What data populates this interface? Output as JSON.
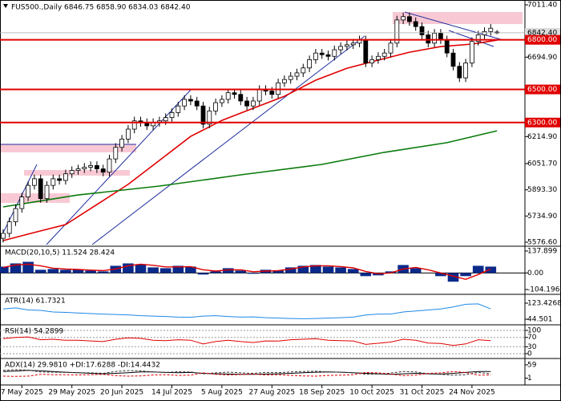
{
  "chart_data": [
    {
      "type": "candlestick",
      "title": "FUS500.,Daily 6846.75 6858.90 6834.03 6842.40",
      "categories": [
        null,
        null,
        null,
        "7 May 2025",
        null,
        null,
        null,
        null,
        null,
        null,
        null,
        "29 May 2025",
        null,
        null,
        null,
        null,
        null,
        null,
        null,
        "20 Jun 2025",
        null,
        null,
        null,
        null,
        null,
        null,
        null,
        "14 Jul 2025",
        null,
        null,
        null,
        null,
        null,
        null,
        null,
        "5 Aug 2025",
        null,
        null,
        null,
        null,
        null,
        null,
        null,
        "27 Aug 2025",
        null,
        null,
        null,
        null,
        null,
        null,
        null,
        "18 Sep 2025",
        null,
        null,
        null,
        null,
        null,
        null,
        null,
        "10 Oct 2025",
        null,
        null,
        null,
        null,
        null,
        null,
        null,
        "31 Oct 2025",
        null,
        null,
        null,
        null,
        null,
        null,
        null,
        "24 Nov 2025",
        null,
        null,
        null,
        null
      ],
      "open": [
        5600,
        5630,
        5700,
        5780,
        5850,
        5920,
        5960,
        5840,
        5920,
        5960,
        5950,
        5990,
        6010,
        6020,
        6030,
        6040,
        6020,
        6000,
        6080,
        6150,
        6200,
        6260,
        6310,
        6300,
        6280,
        6300,
        6310,
        6330,
        6360,
        6400,
        6440,
        6430,
        6400,
        6290,
        6370,
        6420,
        6440,
        6480,
        6470,
        6430,
        6400,
        6430,
        6500,
        6490,
        6470,
        6540,
        6560,
        6580,
        6600,
        6630,
        6680,
        6720,
        6710,
        6700,
        6740,
        6760,
        6770,
        6780,
        6800,
        6660,
        6680,
        6700,
        6720,
        6780,
        6920,
        6940,
        6910,
        6880,
        6830,
        6780,
        6840,
        6800,
        6720,
        6640,
        6570,
        6660,
        6790,
        6830,
        6850,
        6846.75
      ],
      "high": [
        5655,
        5725,
        5805,
        5875,
        5945,
        5985,
        5985,
        5945,
        5985,
        5985,
        6015,
        6035,
        6045,
        6055,
        6065,
        6065,
        6045,
        6105,
        6175,
        6225,
        6285,
        6335,
        6335,
        6325,
        6325,
        6335,
        6355,
        6385,
        6425,
        6465,
        6465,
        6455,
        6425,
        6395,
        6445,
        6465,
        6505,
        6505,
        6495,
        6455,
        6455,
        6525,
        6525,
        6515,
        6565,
        6585,
        6605,
        6625,
        6655,
        6705,
        6745,
        6745,
        6735,
        6765,
        6785,
        6795,
        6805,
        6825,
        6825,
        6705,
        6725,
        6745,
        6805,
        6945,
        6965,
        6965,
        6935,
        6905,
        6855,
        6865,
        6865,
        6825,
        6745,
        6665,
        6685,
        6815,
        6855,
        6875,
        6895,
        6858.9
      ],
      "low": [
        5575,
        5605,
        5675,
        5755,
        5825,
        5895,
        5815,
        5815,
        5895,
        5925,
        5925,
        5965,
        5985,
        5995,
        6005,
        5995,
        5975,
        5975,
        6055,
        6125,
        6175,
        6235,
        6275,
        6255,
        6255,
        6275,
        6285,
        6305,
        6335,
        6375,
        6405,
        6375,
        6265,
        6265,
        6345,
        6395,
        6415,
        6445,
        6405,
        6375,
        6375,
        6405,
        6465,
        6445,
        6445,
        6515,
        6535,
        6555,
        6575,
        6605,
        6655,
        6685,
        6675,
        6675,
        6715,
        6735,
        6745,
        6755,
        6635,
        6635,
        6655,
        6675,
        6695,
        6755,
        6895,
        6885,
        6855,
        6805,
        6755,
        6755,
        6775,
        6695,
        6615,
        6545,
        6545,
        6635,
        6765,
        6805,
        6825,
        6834.03
      ],
      "close": [
        5630,
        5700,
        5780,
        5850,
        5920,
        5960,
        5840,
        5920,
        5960,
        5950,
        5990,
        6010,
        6020,
        6030,
        6040,
        6020,
        6000,
        6080,
        6150,
        6200,
        6260,
        6310,
        6300,
        6280,
        6300,
        6310,
        6330,
        6360,
        6400,
        6440,
        6430,
        6400,
        6290,
        6370,
        6420,
        6440,
        6480,
        6470,
        6430,
        6400,
        6430,
        6500,
        6490,
        6470,
        6540,
        6560,
        6580,
        6600,
        6630,
        6680,
        6720,
        6710,
        6700,
        6740,
        6760,
        6770,
        6780,
        6800,
        6660,
        6680,
        6700,
        6720,
        6780,
        6920,
        6940,
        6910,
        6880,
        6830,
        6780,
        6840,
        6800,
        6720,
        6640,
        6570,
        6660,
        6790,
        6830,
        6850,
        6870,
        6842.4
      ],
      "up_color": "#ffffff",
      "down_color": "#000000",
      "series": [
        {
          "color": "#e00000",
          "x": [
            0,
            5,
            10,
            15,
            20,
            25,
            30,
            35,
            40,
            45,
            50,
            55,
            60,
            65,
            70,
            75,
            79
          ],
          "values": [
            5586,
            5635,
            5683,
            5804,
            5926,
            6071,
            6216,
            6313,
            6386,
            6459,
            6556,
            6628,
            6677,
            6725,
            6759,
            6774,
            6798
          ]
        },
        {
          "color": "#0a7a0a",
          "x": [
            0,
            12,
            25,
            38,
            51,
            61,
            71,
            79
          ],
          "values": [
            5790,
            5862,
            5916,
            5984,
            6047,
            6120,
            6178,
            6250
          ]
        }
      ],
      "levels": [
        {
          "value": 6800,
          "label": "6800.00"
        },
        {
          "value": 6500,
          "label": "6500.00"
        },
        {
          "value": 6300,
          "label": "6300.00"
        }
      ],
      "level_color": "#e00000",
      "last_price": {
        "value": 6842.4,
        "label": "6842.40"
      },
      "ylim": [
        5562,
        7031
      ],
      "yticks": [
        {
          "value": 7011.4,
          "label": "7011.40"
        },
        {
          "value": 6694.9,
          "label": "6694.90"
        },
        {
          "value": 6214.9,
          "label": "6214.90"
        },
        {
          "value": 6051.7,
          "label": "6051.70"
        },
        {
          "value": 5893.3,
          "label": "5893.30"
        },
        {
          "value": 5734.9,
          "label": "5734.90"
        },
        {
          "value": 5576.6,
          "label": "5576.60"
        }
      ],
      "grid": false
    },
    {
      "type": "macd",
      "title": "MACD(20,10,5) 11.524 28.424",
      "x": [
        0,
        2,
        4,
        6,
        8,
        10,
        12,
        14,
        16,
        18,
        20,
        22,
        24,
        26,
        28,
        30,
        32,
        34,
        36,
        38,
        40,
        42,
        44,
        46,
        48,
        50,
        52,
        54,
        56,
        58,
        60,
        62,
        64,
        66,
        68,
        70,
        72,
        74,
        76,
        78
      ],
      "values": [
        40,
        60,
        70,
        20,
        25,
        20,
        20,
        15,
        10,
        45,
        60,
        55,
        35,
        30,
        45,
        40,
        -10,
        10,
        30,
        15,
        -5,
        20,
        15,
        35,
        45,
        50,
        40,
        35,
        25,
        -20,
        -15,
        10,
        50,
        30,
        0,
        -20,
        -55,
        -20,
        45,
        40
      ],
      "color": "#0a2a8a",
      "series": [
        {
          "color": "#e00000",
          "values": [
            35,
            50,
            55,
            45,
            30,
            25,
            22,
            18,
            15,
            25,
            45,
            55,
            48,
            38,
            38,
            40,
            20,
            12,
            20,
            20,
            8,
            12,
            15,
            25,
            38,
            45,
            45,
            40,
            32,
            10,
            -5,
            0,
            25,
            35,
            20,
            0,
            -20,
            -40,
            -10,
            25
          ]
        }
      ],
      "ylim": [
        -129.4,
        163.1
      ],
      "yticks": [
        137.899,
        {
          "value": 0,
          "label": "0.00"
        },
        -104.196
      ],
      "grid": false
    },
    {
      "type": "line",
      "title": "ATR(14) 61.7321",
      "x": [
        0,
        2,
        4,
        6,
        8,
        10,
        12,
        14,
        16,
        18,
        20,
        22,
        24,
        26,
        28,
        30,
        32,
        34,
        36,
        38,
        40,
        42,
        44,
        46,
        48,
        50,
        52,
        54,
        56,
        58,
        60,
        62,
        64,
        66,
        68,
        70,
        72,
        74,
        76,
        78
      ],
      "series": [
        {
          "color": "#1e88e5",
          "values": [
            95,
            100,
            90,
            88,
            80,
            78,
            75,
            72,
            70,
            68,
            66,
            62,
            60,
            58,
            55,
            54,
            60,
            62,
            58,
            55,
            56,
            52,
            50,
            48,
            47,
            48,
            50,
            52,
            55,
            65,
            70,
            70,
            80,
            85,
            90,
            95,
            105,
            118,
            120,
            95
          ]
        }
      ],
      "ylim": [
        20.9,
        162.9
      ],
      "yticks": [
        123.4268,
        44.501
      ],
      "grid": false
    },
    {
      "type": "line",
      "title": "RSI(14) 54.2899",
      "x": [
        0,
        2,
        4,
        6,
        8,
        10,
        12,
        14,
        16,
        18,
        20,
        22,
        24,
        26,
        28,
        30,
        32,
        34,
        36,
        38,
        40,
        42,
        44,
        46,
        48,
        50,
        52,
        54,
        56,
        58,
        60,
        62,
        64,
        66,
        68,
        70,
        72,
        74,
        76,
        78
      ],
      "series": [
        {
          "color": "#e00000",
          "values": [
            65,
            70,
            72,
            60,
            62,
            58,
            58,
            55,
            52,
            62,
            68,
            66,
            58,
            56,
            60,
            58,
            42,
            52,
            58,
            52,
            48,
            55,
            54,
            60,
            62,
            64,
            58,
            56,
            55,
            40,
            45,
            50,
            62,
            58,
            46,
            44,
            35,
            42,
            60,
            56
          ]
        }
      ],
      "ylim": [
        -13.8,
        120.7
      ],
      "yticks": [
        100,
        70,
        30,
        0
      ],
      "grid": true
    },
    {
      "type": "line",
      "title": "ADX(14) 29.9810 +DI:17.6288 -DI:14.4432",
      "x": [
        0,
        2,
        4,
        6,
        8,
        10,
        12,
        14,
        16,
        18,
        20,
        22,
        24,
        26,
        28,
        30,
        32,
        34,
        36,
        38,
        40,
        42,
        44,
        46,
        48,
        50,
        52,
        54,
        56,
        58,
        60,
        62,
        64,
        66,
        68,
        70,
        72,
        74,
        76,
        78
      ],
      "series": [
        {
          "color": "#000000",
          "dash": false,
          "values": [
            30,
            32,
            35,
            33,
            30,
            27,
            25,
            22,
            20,
            22,
            25,
            28,
            28,
            26,
            25,
            26,
            22,
            20,
            19,
            18,
            18,
            19,
            20,
            22,
            25,
            27,
            28,
            27,
            25,
            22,
            20,
            18,
            20,
            22,
            20,
            19,
            22,
            26,
            30,
            30
          ]
        },
        {
          "color": "#333333",
          "dash": true,
          "values": [
            35,
            38,
            36,
            28,
            27,
            26,
            25,
            24,
            22,
            30,
            34,
            33,
            28,
            26,
            29,
            28,
            20,
            24,
            27,
            24,
            22,
            26,
            25,
            28,
            30,
            31,
            28,
            27,
            25,
            18,
            19,
            23,
            30,
            28,
            20,
            18,
            14,
            16,
            26,
            20
          ]
        },
        {
          "color": "#e00000",
          "dash": true,
          "values": [
            10,
            9,
            10,
            18,
            16,
            16,
            15,
            16,
            18,
            12,
            10,
            11,
            15,
            16,
            13,
            14,
            24,
            18,
            15,
            17,
            19,
            15,
            16,
            13,
            11,
            10,
            13,
            14,
            16,
            26,
            24,
            19,
            12,
            14,
            22,
            24,
            30,
            26,
            14,
            15
          ]
        }
      ],
      "ylim": [
        -21.4,
        82.9
      ],
      "yticks": [
        59,
        1
      ],
      "grid": false
    }
  ]
}
